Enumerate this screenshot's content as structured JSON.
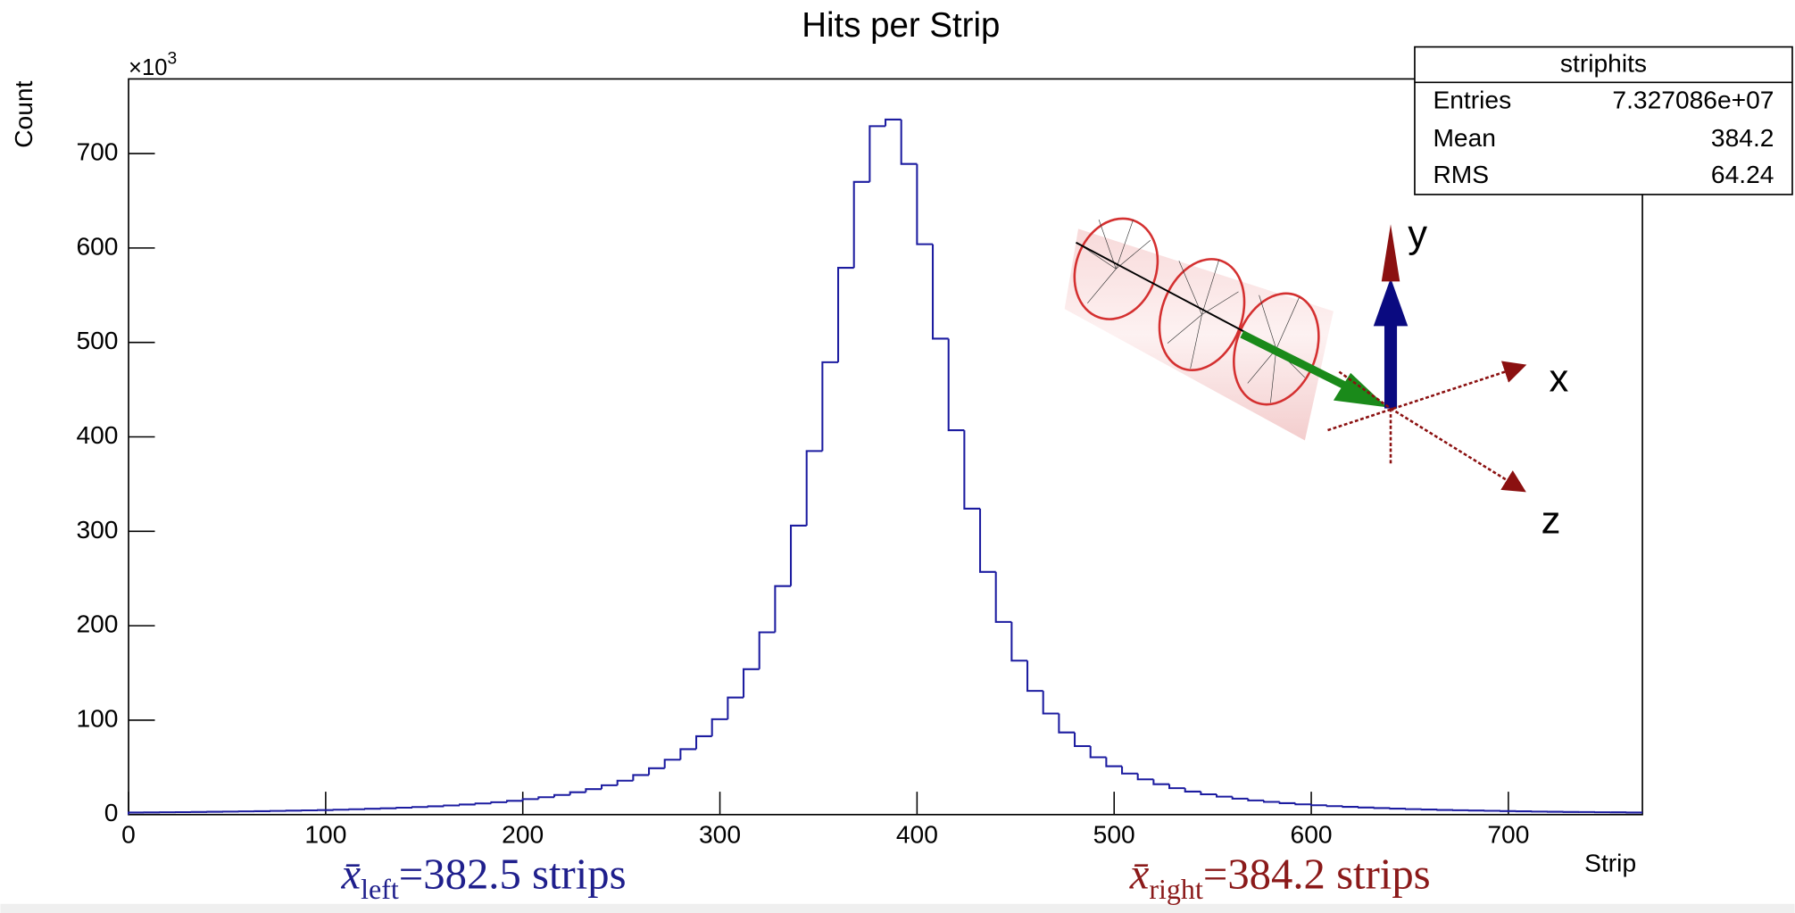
{
  "chart_data": {
    "type": "histogram",
    "title": "Hits per Strip",
    "x_label": "Strip",
    "y_label": "Count",
    "y_multiplier": {
      "base": "×10",
      "exponent": "3"
    },
    "color": "#1c1ca0",
    "xlim": [
      0,
      768
    ],
    "ylim": [
      0,
      779
    ],
    "xticks": [
      0,
      100,
      200,
      300,
      400,
      500,
      600,
      700
    ],
    "yticks": [
      0,
      100,
      200,
      300,
      400,
      500,
      600,
      700
    ],
    "bins": [
      0,
      8,
      16,
      24,
      32,
      40,
      48,
      56,
      64,
      72,
      80,
      88,
      96,
      104,
      112,
      120,
      128,
      136,
      144,
      152,
      160,
      168,
      176,
      184,
      192,
      200,
      208,
      216,
      224,
      232,
      240,
      248,
      256,
      264,
      272,
      280,
      288,
      296,
      304,
      312,
      320,
      328,
      336,
      344,
      352,
      360,
      368,
      376,
      384,
      392,
      400,
      408,
      416,
      424,
      432,
      440,
      448,
      456,
      464,
      472,
      480,
      488,
      496,
      504,
      512,
      520,
      528,
      536,
      544,
      552,
      560,
      568,
      576,
      584,
      592,
      600,
      608,
      616,
      624,
      632,
      640,
      648,
      656,
      664,
      672,
      680,
      688,
      696,
      704,
      712,
      720,
      728,
      736,
      744,
      752,
      760,
      768
    ],
    "values": [
      2.2,
      2.3,
      2.5,
      2.6,
      2.8,
      3.0,
      3.2,
      3.4,
      3.6,
      3.9,
      4.2,
      4.5,
      4.8,
      5.2,
      5.7,
      6.2,
      6.7,
      7.3,
      8.0,
      8.8,
      9.7,
      10.7,
      11.8,
      13.1,
      14.6,
      16.4,
      18.4,
      20.8,
      23.7,
      27.0,
      31.1,
      35.9,
      41.9,
      49.1,
      58.1,
      69.3,
      83,
      101,
      124,
      154,
      193,
      242,
      306,
      385,
      479,
      579,
      670,
      729,
      736,
      689,
      604,
      504,
      407,
      324,
      257,
      204,
      163,
      131,
      107,
      87,
      72.5,
      60.7,
      51.2,
      43.5,
      37.3,
      32.2,
      28.0,
      24.4,
      21.5,
      19.0,
      16.9,
      15.0,
      13.5,
      12.1,
      10.9,
      9.9,
      9.0,
      8.2,
      7.5,
      6.9,
      6.3,
      5.8,
      5.4,
      4.9,
      4.6,
      4.3,
      4.0,
      3.7,
      3.5,
      3.2,
      3.0,
      2.8,
      2.7,
      2.5,
      2.4,
      2.2
    ],
    "stats": {
      "name": "striphits",
      "rows": [
        [
          "Entries",
          "7.327086e+07"
        ],
        [
          "Mean",
          "384.2"
        ],
        [
          "RMS",
          "64.24"
        ]
      ]
    },
    "annotations": [
      {
        "symbol": "x̄",
        "subscript": "left",
        "text": "=382.5 strips",
        "color": "#1f1f8c"
      },
      {
        "symbol": "x̄",
        "subscript": "right",
        "text": "=384.2 strips",
        "color": "#8b1a1a"
      }
    ],
    "diagram_labels": [
      "y",
      "x",
      "z"
    ]
  }
}
